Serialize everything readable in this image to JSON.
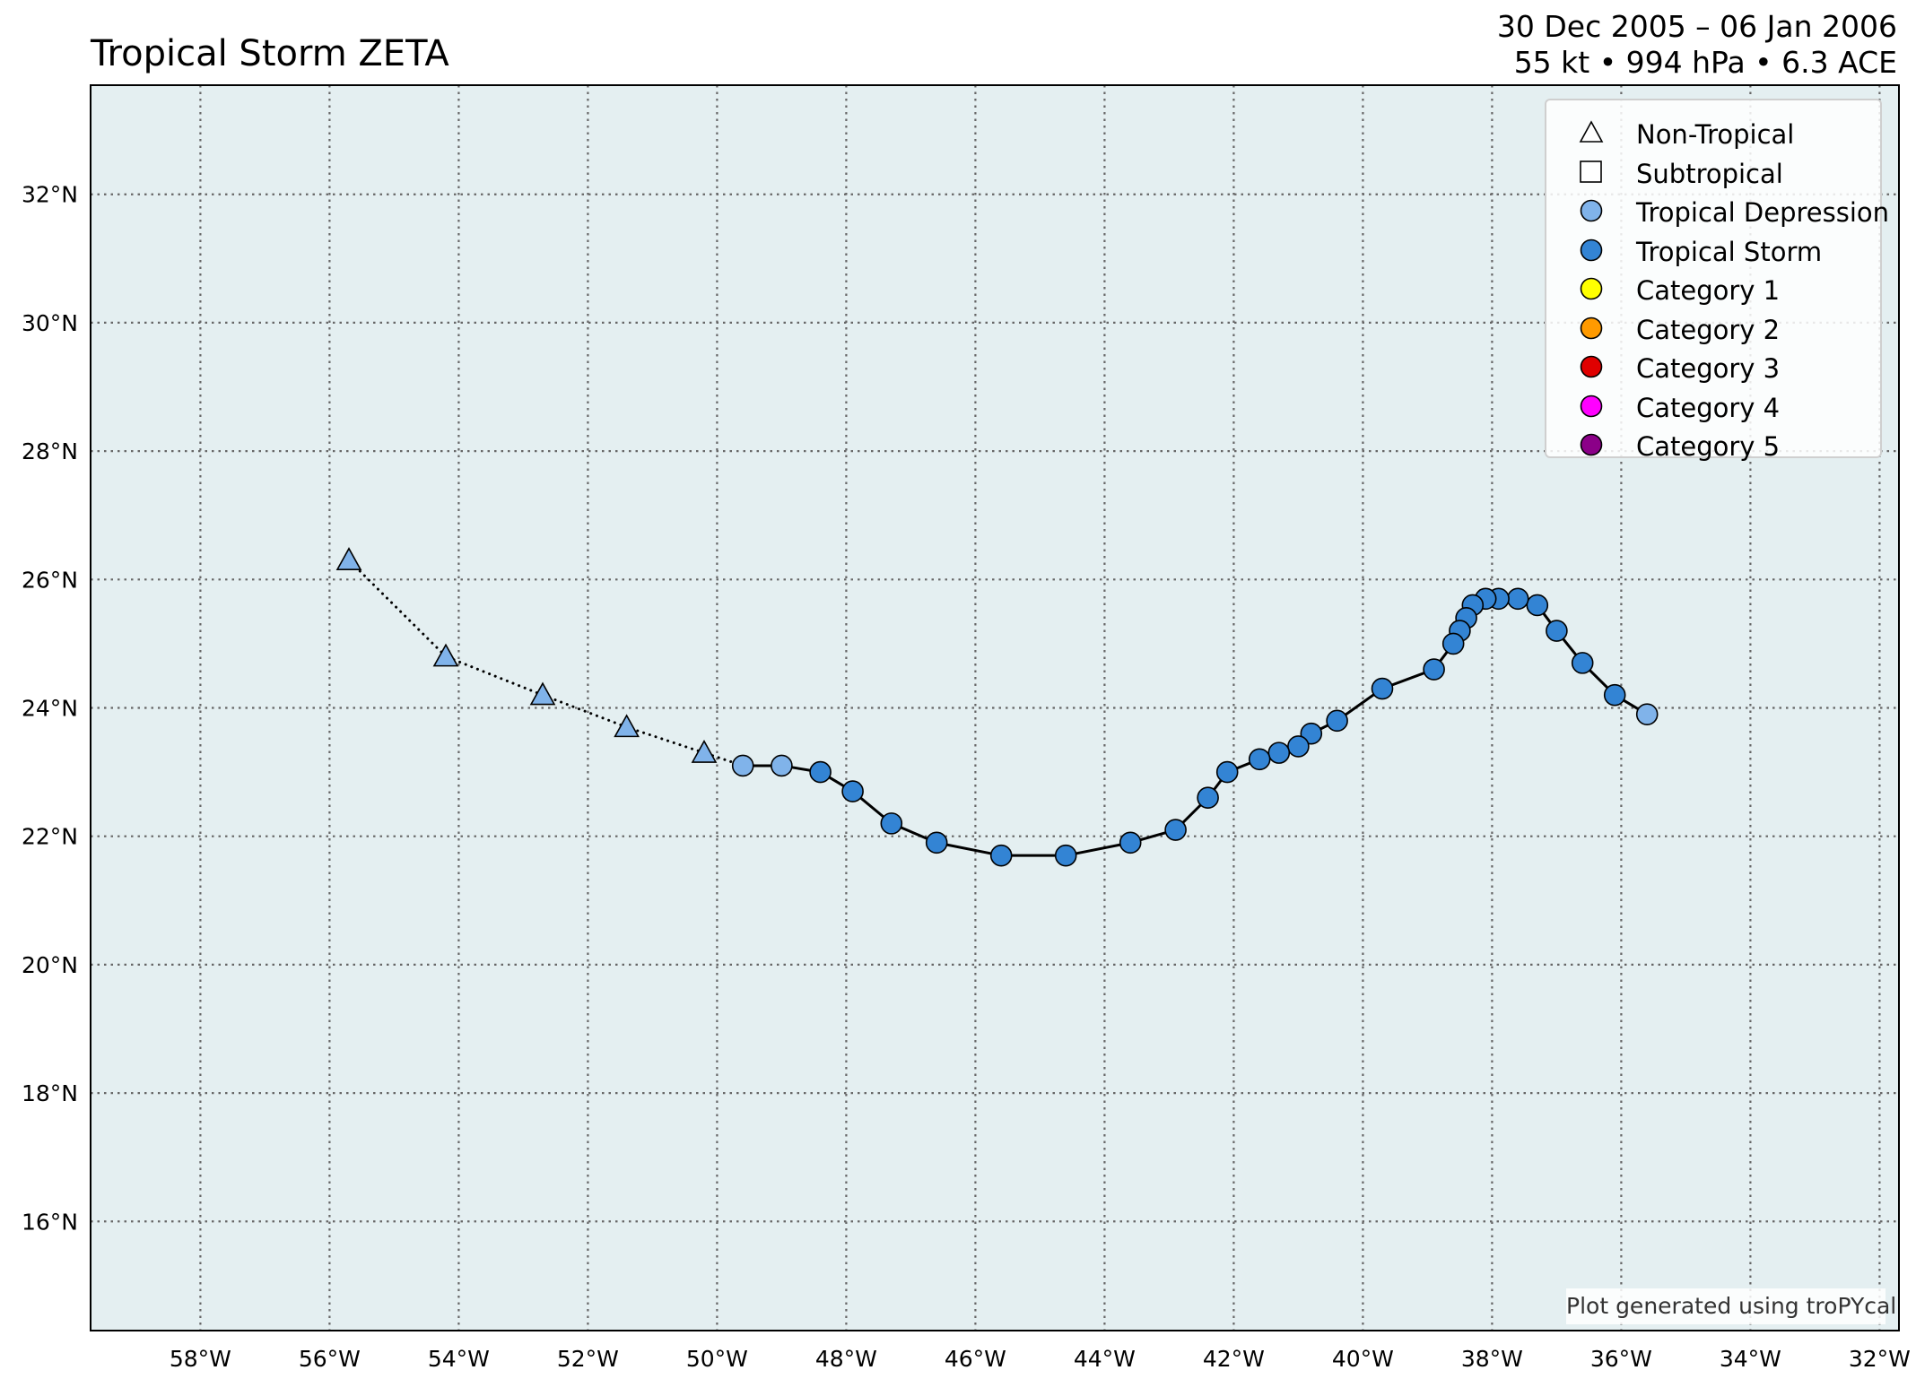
{
  "title": "Tropical Storm ZETA",
  "subtitle": {
    "dates": "30 Dec 2005 – 06 Jan 2006",
    "stats": "55 kt • 994 hPa • 6.3 ACE"
  },
  "colors": {
    "ocean": "#e4eff1",
    "tropical_depression": "#80b3ea",
    "tropical_storm": "#3384d4",
    "non_tropical": "#80b3ea",
    "category_1": "#ffff00",
    "category_2": "#ff9a00",
    "category_3": "#e00000",
    "category_4": "#ff00ff",
    "category_5": "#8b0088",
    "grid": "#666666"
  },
  "legend": [
    {
      "label": "Non-Tropical",
      "symbol": "triangle",
      "color": "#ffffff"
    },
    {
      "label": "Subtropical",
      "symbol": "square",
      "color": "#ffffff"
    },
    {
      "label": "Tropical Depression",
      "symbol": "circle",
      "color": "#80b3ea"
    },
    {
      "label": "Tropical Storm",
      "symbol": "circle",
      "color": "#3384d4"
    },
    {
      "label": "Category 1",
      "symbol": "circle",
      "color": "#ffff00"
    },
    {
      "label": "Category 2",
      "symbol": "circle",
      "color": "#ff9a00"
    },
    {
      "label": "Category 3",
      "symbol": "circle",
      "color": "#e00000"
    },
    {
      "label": "Category 4",
      "symbol": "circle",
      "color": "#ff00ff"
    },
    {
      "label": "Category 5",
      "symbol": "circle",
      "color": "#8b0088"
    }
  ],
  "credit": "Plot generated using troPYcal",
  "chart_data": {
    "type": "scatter",
    "xlim": [
      -59.7,
      -31.7
    ],
    "ylim": [
      14.3,
      33.7
    ],
    "x_ticks": [
      -58,
      -56,
      -54,
      -52,
      -50,
      -48,
      -46,
      -44,
      -42,
      -40,
      -38,
      -36,
      -34,
      -32
    ],
    "x_tick_labels": [
      "58°W",
      "56°W",
      "54°W",
      "52°W",
      "50°W",
      "48°W",
      "46°W",
      "44°W",
      "42°W",
      "40°W",
      "38°W",
      "36°W",
      "34°W",
      "32°W"
    ],
    "y_ticks": [
      16,
      18,
      20,
      22,
      24,
      26,
      28,
      30,
      32
    ],
    "y_tick_labels": [
      "16°N",
      "18°N",
      "20°N",
      "22°N",
      "24°N",
      "26°N",
      "28°N",
      "30°N",
      "32°N"
    ],
    "grid": true,
    "legend_position": "top-right",
    "track": [
      {
        "lon": -35.6,
        "lat": 23.9,
        "type": "TD"
      },
      {
        "lon": -36.1,
        "lat": 24.2,
        "type": "TS"
      },
      {
        "lon": -36.6,
        "lat": 24.7,
        "type": "TS"
      },
      {
        "lon": -37.0,
        "lat": 25.2,
        "type": "TS"
      },
      {
        "lon": -37.3,
        "lat": 25.6,
        "type": "TS"
      },
      {
        "lon": -37.6,
        "lat": 25.7,
        "type": "TS"
      },
      {
        "lon": -37.9,
        "lat": 25.7,
        "type": "TS"
      },
      {
        "lon": -38.1,
        "lat": 25.7,
        "type": "TS"
      },
      {
        "lon": -38.3,
        "lat": 25.6,
        "type": "TS"
      },
      {
        "lon": -38.4,
        "lat": 25.4,
        "type": "TS"
      },
      {
        "lon": -38.5,
        "lat": 25.2,
        "type": "TS"
      },
      {
        "lon": -38.6,
        "lat": 25.0,
        "type": "TS"
      },
      {
        "lon": -38.9,
        "lat": 24.6,
        "type": "TS"
      },
      {
        "lon": -39.7,
        "lat": 24.3,
        "type": "TS"
      },
      {
        "lon": -40.4,
        "lat": 23.8,
        "type": "TS"
      },
      {
        "lon": -40.8,
        "lat": 23.6,
        "type": "TS"
      },
      {
        "lon": -41.0,
        "lat": 23.4,
        "type": "TS"
      },
      {
        "lon": -41.3,
        "lat": 23.3,
        "type": "TS"
      },
      {
        "lon": -41.6,
        "lat": 23.2,
        "type": "TS"
      },
      {
        "lon": -42.1,
        "lat": 23.0,
        "type": "TS"
      },
      {
        "lon": -42.4,
        "lat": 22.6,
        "type": "TS"
      },
      {
        "lon": -42.9,
        "lat": 22.1,
        "type": "TS"
      },
      {
        "lon": -43.6,
        "lat": 21.9,
        "type": "TS"
      },
      {
        "lon": -44.6,
        "lat": 21.7,
        "type": "TS"
      },
      {
        "lon": -45.6,
        "lat": 21.7,
        "type": "TS"
      },
      {
        "lon": -46.6,
        "lat": 21.9,
        "type": "TS"
      },
      {
        "lon": -47.3,
        "lat": 22.2,
        "type": "TS"
      },
      {
        "lon": -47.9,
        "lat": 22.7,
        "type": "TS"
      },
      {
        "lon": -48.4,
        "lat": 23.0,
        "type": "TS"
      },
      {
        "lon": -49.0,
        "lat": 23.1,
        "type": "TD"
      },
      {
        "lon": -49.6,
        "lat": 23.1,
        "type": "TD"
      },
      {
        "lon": -50.2,
        "lat": 23.3,
        "type": "EX"
      },
      {
        "lon": -51.4,
        "lat": 23.7,
        "type": "EX"
      },
      {
        "lon": -52.7,
        "lat": 24.2,
        "type": "EX"
      },
      {
        "lon": -54.2,
        "lat": 24.8,
        "type": "EX"
      },
      {
        "lon": -55.7,
        "lat": 26.3,
        "type": "EX"
      }
    ]
  }
}
